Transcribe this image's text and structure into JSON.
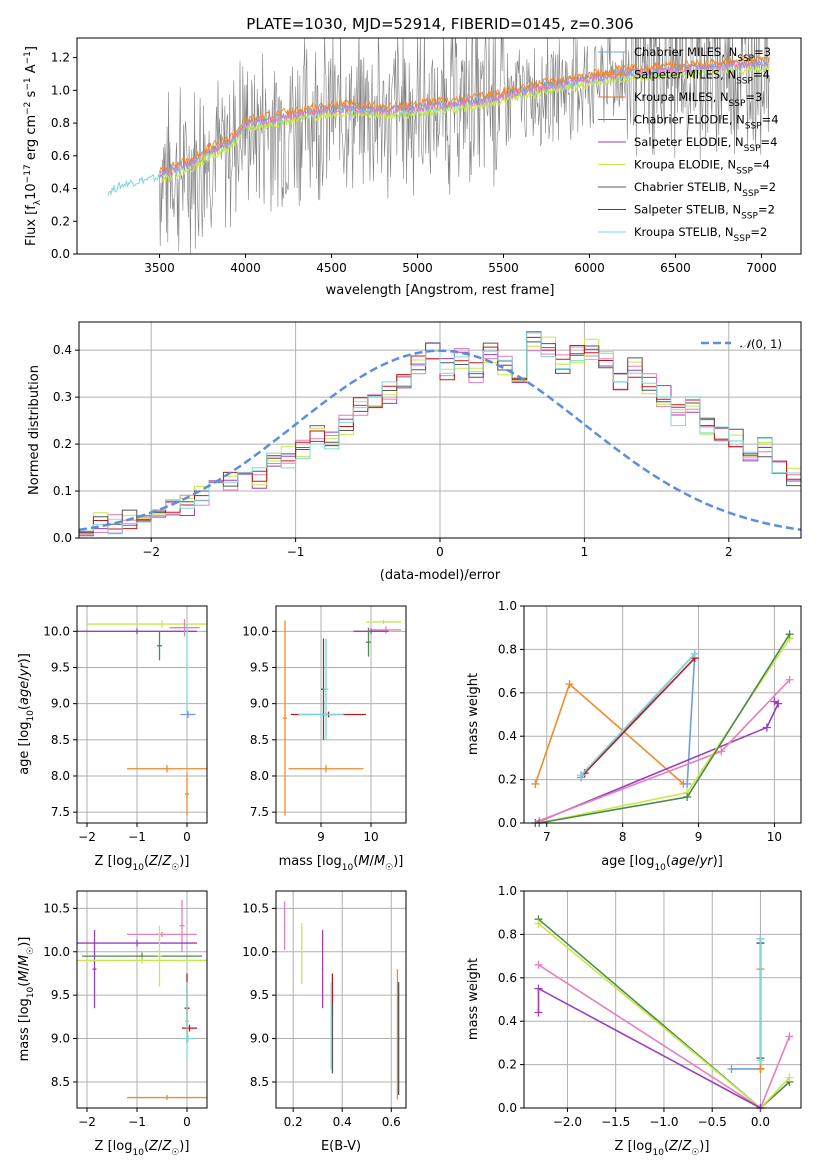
{
  "colors": {
    "Chabrier MILES": "#6f9fe0",
    "Salpeter MILES": "#f08a2e",
    "Kroupa MILES": "#e07030",
    "Chabrier ELODIE": "#4c8a4c",
    "Salpeter ELODIE": "#9a3fbf",
    "Kroupa ELODIE": "#c8e84a",
    "Chabrier STELIB": "#555555",
    "Salpeter STELIB": "#c0181a",
    "Kroupa STELIB": "#7fd8d8",
    "pink": "#e67fbf",
    "normal": "#5b8fdb",
    "gray": "#808080"
  },
  "chart_data": [
    {
      "id": "spectrum",
      "type": "line",
      "title": "PLATE=1030, MJD=52914, FIBERID=0145, z=0.306",
      "xlabel": "wavelength [Angstrom, rest frame]",
      "ylabel": "Flux [f$_\\lambda$10$^{-17}$ erg cm$^{-2}$ s$^{-1}$ A$^{-1}$]",
      "ylabel_parts": [
        "Flux [f",
        "λ",
        "10",
        "−17",
        " erg cm",
        "−2",
        " s",
        "−1",
        " A",
        "−1",
        "]"
      ],
      "xlim": [
        3020,
        7230
      ],
      "ylim": [
        0,
        1.32
      ],
      "xticks": [
        3500,
        4000,
        4500,
        5000,
        5500,
        6000,
        6500,
        7000
      ],
      "yticks": [
        0.0,
        0.2,
        0.4,
        0.6,
        0.8,
        1.0,
        1.2
      ],
      "grid": false,
      "legend_position": "top-right",
      "legend": [
        {
          "name": "Chabrier MILES",
          "N": "3"
        },
        {
          "name": "Salpeter MILES",
          "N": "4"
        },
        {
          "name": "Kroupa MILES",
          "N": "3"
        },
        {
          "name": "Chabrier ELODIE",
          "N": "4"
        },
        {
          "name": "Salpeter ELODIE",
          "N": "4"
        },
        {
          "name": "Kroupa ELODIE",
          "N": "4"
        },
        {
          "name": "Chabrier STELIB",
          "N": "2"
        },
        {
          "name": "Salpeter STELIB",
          "N": "2"
        },
        {
          "name": "Kroupa STELIB",
          "N": "2"
        }
      ],
      "data_x_range": [
        3500,
        7050
      ],
      "model_blue_start": [
        3200,
        0.38
      ],
      "model_anchor_x": [
        3200,
        3300,
        3500,
        3700,
        3800,
        3900,
        4000,
        4200,
        4400,
        4600,
        4800,
        5000,
        5200,
        5400,
        5600,
        5800,
        6000,
        6200,
        6400,
        6600,
        6800,
        7000
      ],
      "model_anchor_y": [
        0.38,
        0.43,
        0.47,
        0.55,
        0.62,
        0.66,
        0.78,
        0.82,
        0.86,
        0.88,
        0.86,
        0.88,
        0.9,
        0.93,
        0.98,
        1.02,
        1.06,
        1.09,
        1.11,
        1.12,
        1.14,
        1.15
      ]
    },
    {
      "id": "residuals",
      "type": "histogram",
      "xlabel": "(data-model)/error",
      "ylabel": "Normed distribution",
      "xlim": [
        -2.5,
        2.5
      ],
      "ylim": [
        0,
        0.46
      ],
      "xticks": [
        -2,
        -1,
        0,
        1,
        2
      ],
      "yticks": [
        0.0,
        0.1,
        0.2,
        0.3,
        0.4
      ],
      "grid": true,
      "legend_position": "top-right",
      "legend": [
        "𝒩(0, 1)"
      ],
      "bin_width": 0.1,
      "bin_start": -2.5,
      "values": [
        0.02,
        0.03,
        0.03,
        0.04,
        0.05,
        0.05,
        0.06,
        0.07,
        0.09,
        0.11,
        0.12,
        0.15,
        0.13,
        0.16,
        0.17,
        0.19,
        0.22,
        0.21,
        0.24,
        0.28,
        0.29,
        0.31,
        0.33,
        0.37,
        0.4,
        0.36,
        0.38,
        0.35,
        0.39,
        0.37,
        0.33,
        0.42,
        0.41,
        0.37,
        0.39,
        0.4,
        0.38,
        0.34,
        0.36,
        0.33,
        0.3,
        0.26,
        0.28,
        0.24,
        0.22,
        0.21,
        0.17,
        0.19,
        0.14,
        0.13,
        0.11,
        0.1,
        0.08,
        0.07,
        0.06,
        0.06,
        0.05,
        0.04,
        0.04,
        0.03
      ],
      "normal_curve": {
        "mu": 0,
        "sigma": 1
      }
    },
    {
      "id": "age_vs_Z",
      "type": "errorbar",
      "xlabel": "Z [log10(Z/Z☉)]",
      "ylabel": "age  [log10(age/yr)]",
      "xlim": [
        -2.2,
        0.4
      ],
      "ylim": [
        7.35,
        10.35
      ],
      "xticks": [
        -2,
        -1,
        0
      ],
      "yticks": [
        7.5,
        8.0,
        8.5,
        9.0,
        9.5,
        10.0
      ],
      "grid": true,
      "points": [
        {
          "x": -0.5,
          "y": 10.1,
          "xerr": 1.5,
          "yerr": 0.05,
          "c": "Kroupa ELODIE"
        },
        {
          "x": -1.0,
          "y": 10.0,
          "xerr": 1.2,
          "yerr": 0.04,
          "c": "Salpeter ELODIE"
        },
        {
          "x": -0.05,
          "y": 10.05,
          "xerr": 0.3,
          "yerr": 0.12,
          "c": "pink"
        },
        {
          "x": -0.55,
          "y": 9.8,
          "xerr": 0.05,
          "yerr": 0.2,
          "c": "Chabrier ELODIE"
        },
        {
          "x": 0.0,
          "y": 9.5,
          "xerr": 0.05,
          "yerr": 0.6,
          "c": "Kroupa STELIB"
        },
        {
          "x": 0.02,
          "y": 8.85,
          "xerr": 0.15,
          "yerr": 0.05,
          "c": "Chabrier MILES"
        },
        {
          "x": -0.4,
          "y": 8.1,
          "xerr": 0.8,
          "yerr": 0.05,
          "c": "Salpeter MILES"
        },
        {
          "x": 0.0,
          "y": 7.75,
          "xerr": 0.04,
          "yerr": 0.3,
          "c": "Salpeter MILES"
        }
      ]
    },
    {
      "id": "age_vs_mass",
      "type": "errorbar",
      "xlabel": "mass [log10(M/M☉)]",
      "ylabel": "",
      "xlim": [
        8.1,
        10.7
      ],
      "ylim": [
        7.35,
        10.35
      ],
      "xticks": [
        9,
        10
      ],
      "yticks": [
        7.5,
        8.0,
        8.5,
        9.0,
        9.5,
        10.0
      ],
      "grid": true,
      "points": [
        {
          "x": 10.25,
          "y": 10.13,
          "xerr": 0.35,
          "yerr": 0.03,
          "c": "Kroupa ELODIE"
        },
        {
          "x": 10.3,
          "y": 10.02,
          "xerr": 0.3,
          "yerr": 0.05,
          "c": "pink"
        },
        {
          "x": 10.0,
          "y": 10.0,
          "xerr": 0.35,
          "yerr": 0.04,
          "c": "Salpeter ELODIE"
        },
        {
          "x": 9.95,
          "y": 9.85,
          "xerr": 0.05,
          "yerr": 0.2,
          "c": "Chabrier ELODIE"
        },
        {
          "x": 9.05,
          "y": 9.2,
          "xerr": 0.05,
          "yerr": 0.7,
          "c": "Chabrier STELIB"
        },
        {
          "x": 9.15,
          "y": 8.85,
          "xerr": 0.75,
          "yerr": 0.04,
          "c": "Salpeter STELIB"
        },
        {
          "x": 9.0,
          "y": 8.85,
          "xerr": 0.45,
          "yerr": 0.04,
          "c": "Kroupa STELIB"
        },
        {
          "x": 9.1,
          "y": 9.2,
          "xerr": 0.05,
          "yerr": 0.7,
          "c": "Kroupa STELIB"
        },
        {
          "x": 9.1,
          "y": 8.1,
          "xerr": 0.75,
          "yerr": 0.05,
          "c": "Salpeter MILES"
        },
        {
          "x": 8.28,
          "y": 8.8,
          "xerr": 0.04,
          "yerr": 1.35,
          "c": "Salpeter MILES"
        }
      ]
    },
    {
      "id": "mass_weight_vs_age",
      "type": "line",
      "xlabel": "age  [log10(age/yr)]",
      "ylabel": "mass weight",
      "xlim": [
        6.7,
        10.35
      ],
      "ylim": [
        0,
        1.0
      ],
      "xticks": [
        7,
        8,
        9,
        10
      ],
      "yticks": [
        0.0,
        0.2,
        0.4,
        0.6,
        0.8,
        1.0
      ],
      "grid": true,
      "series": [
        {
          "c": "Salpeter MILES",
          "x": [
            6.85,
            7.3,
            8.8
          ],
          "y": [
            0.18,
            0.64,
            0.18
          ]
        },
        {
          "c": "Chabrier MILES",
          "x": [
            7.45,
            8.95,
            8.85
          ],
          "y": [
            0.21,
            0.78,
            0.18
          ]
        },
        {
          "c": "Salpeter STELIB",
          "x": [
            7.5,
            8.95
          ],
          "y": [
            0.23,
            0.76
          ]
        },
        {
          "c": "Kroupa STELIB",
          "x": [
            7.45,
            8.95
          ],
          "y": [
            0.22,
            0.78
          ]
        },
        {
          "c": "Salpeter ELODIE",
          "x": [
            6.85,
            9.9,
            10.05,
            10.0
          ],
          "y": [
            0.0,
            0.44,
            0.55,
            0.56
          ]
        },
        {
          "c": "pink",
          "x": [
            6.9,
            9.3,
            10.2
          ],
          "y": [
            0.01,
            0.33,
            0.66
          ]
        },
        {
          "c": "Kroupa ELODIE",
          "x": [
            6.9,
            8.85,
            10.2
          ],
          "y": [
            0.0,
            0.14,
            0.85
          ]
        },
        {
          "c": "Chabrier ELODIE",
          "x": [
            6.9,
            8.85,
            10.2
          ],
          "y": [
            0.0,
            0.12,
            0.87
          ]
        }
      ]
    },
    {
      "id": "mass_vs_Z",
      "type": "errorbar",
      "xlabel": "Z [log10(Z/Z☉)]",
      "ylabel": "mass [log10(M/M☉)]",
      "xlim": [
        -2.2,
        0.4
      ],
      "ylim": [
        8.2,
        10.7
      ],
      "xticks": [
        -2,
        -1,
        0
      ],
      "yticks": [
        8.5,
        9.0,
        9.5,
        10.0,
        10.5
      ],
      "grid": true,
      "points": [
        {
          "x": -0.5,
          "y": 10.2,
          "xerr": 0.7,
          "yerr": 0.03,
          "c": "pink"
        },
        {
          "x": -0.1,
          "y": 10.3,
          "xerr": 0.05,
          "yerr": 0.3,
          "c": "pink"
        },
        {
          "x": -1.0,
          "y": 10.1,
          "xerr": 1.2,
          "yerr": 0.04,
          "c": "Salpeter ELODIE"
        },
        {
          "x": -1.85,
          "y": 9.8,
          "xerr": 0.04,
          "yerr": 0.45,
          "c": "Salpeter ELODIE"
        },
        {
          "x": -0.9,
          "y": 9.95,
          "xerr": 1.2,
          "yerr": 0.04,
          "c": "Chabrier ELODIE"
        },
        {
          "x": -0.9,
          "y": 9.9,
          "xerr": 1.3,
          "yerr": 0.04,
          "c": "Kroupa ELODIE"
        },
        {
          "x": -0.55,
          "y": 9.95,
          "xerr": 0.04,
          "yerr": 0.35,
          "c": "Kroupa ELODIE"
        },
        {
          "x": 0.0,
          "y": 9.35,
          "xerr": 0.05,
          "yerr": 0.4,
          "c": "Salpeter STELIB"
        },
        {
          "x": 0.05,
          "y": 9.12,
          "xerr": 0.15,
          "yerr": 0.04,
          "c": "Salpeter STELIB"
        },
        {
          "x": 0.02,
          "y": 9.0,
          "xerr": 0.15,
          "yerr": 0.04,
          "c": "Kroupa STELIB"
        },
        {
          "x": 0.0,
          "y": 9.2,
          "xerr": 0.04,
          "yerr": 0.45,
          "c": "Kroupa STELIB"
        },
        {
          "x": -0.4,
          "y": 8.32,
          "xerr": 0.8,
          "yerr": 0.03,
          "c": "Salpeter MILES"
        }
      ]
    },
    {
      "id": "mass_vs_EBV",
      "type": "errorbar",
      "xlabel": "E(B-V)",
      "ylabel": "",
      "xlim": [
        0.13,
        0.66
      ],
      "ylim": [
        8.2,
        10.7
      ],
      "xticks": [
        0.2,
        0.4,
        0.6
      ],
      "yticks": [
        8.5,
        9.0,
        9.5,
        10.0,
        10.5
      ],
      "grid": true,
      "points": [
        {
          "x": 0.165,
          "y": 10.3,
          "xerr": 0.003,
          "yerr": 0.28,
          "c": "pink"
        },
        {
          "x": 0.235,
          "y": 9.98,
          "xerr": 0.003,
          "yerr": 0.35,
          "c": "Kroupa ELODIE"
        },
        {
          "x": 0.32,
          "y": 9.8,
          "xerr": 0.003,
          "yerr": 0.45,
          "c": "Salpeter ELODIE"
        },
        {
          "x": 0.36,
          "y": 9.5,
          "xerr": 0.003,
          "yerr": 0.25,
          "c": "Salpeter STELIB"
        },
        {
          "x": 0.36,
          "y": 9.0,
          "xerr": 0.003,
          "yerr": 0.4,
          "c": "Chabrier STELIB"
        },
        {
          "x": 0.355,
          "y": 9.15,
          "xerr": 0.003,
          "yerr": 0.5,
          "c": "Kroupa STELIB"
        },
        {
          "x": 0.625,
          "y": 9.05,
          "xerr": 0.003,
          "yerr": 0.75,
          "c": "Salpeter MILES"
        },
        {
          "x": 0.63,
          "y": 9.0,
          "xerr": 0.003,
          "yerr": 0.65,
          "c": "Chabrier STELIB"
        }
      ]
    },
    {
      "id": "mass_weight_vs_Z",
      "type": "line",
      "xlabel": "Z [log10(Z/Z☉)]",
      "ylabel": "mass weight",
      "xlim": [
        -2.45,
        0.42
      ],
      "ylim": [
        0,
        1.0
      ],
      "xticks": [
        -2.0,
        -1.5,
        -1.0,
        -0.5,
        0.0
      ],
      "yticks": [
        0.0,
        0.2,
        0.4,
        0.6,
        0.8,
        1.0
      ],
      "grid": true,
      "series": [
        {
          "c": "Chabrier ELODIE",
          "x": [
            -2.3,
            0.0,
            0.3
          ],
          "y": [
            0.87,
            0.0,
            0.12
          ]
        },
        {
          "c": "Kroupa ELODIE",
          "x": [
            -2.3,
            0.0,
            0.3
          ],
          "y": [
            0.85,
            0.0,
            0.14
          ]
        },
        {
          "c": "pink",
          "x": [
            -2.3,
            0.0,
            0.3
          ],
          "y": [
            0.66,
            0.0,
            0.33
          ]
        },
        {
          "c": "Salpeter ELODIE",
          "x": [
            -2.3,
            -2.3,
            0.0
          ],
          "y": [
            0.44,
            0.55,
            0.0
          ]
        },
        {
          "c": "Chabrier MILES",
          "x": [
            -0.3,
            0.0,
            0.0
          ],
          "y": [
            0.18,
            0.18,
            0.78
          ]
        },
        {
          "c": "Salpeter MILES",
          "x": [
            0.0,
            0.0,
            0.0
          ],
          "y": [
            0.18,
            0.64,
            0.18
          ]
        },
        {
          "c": "Chabrier STELIB",
          "x": [
            0.0,
            0.0
          ],
          "y": [
            0.23,
            0.76
          ]
        },
        {
          "c": "Kroupa STELIB",
          "x": [
            0.0,
            0.0
          ],
          "y": [
            0.22,
            0.78
          ]
        }
      ]
    }
  ]
}
